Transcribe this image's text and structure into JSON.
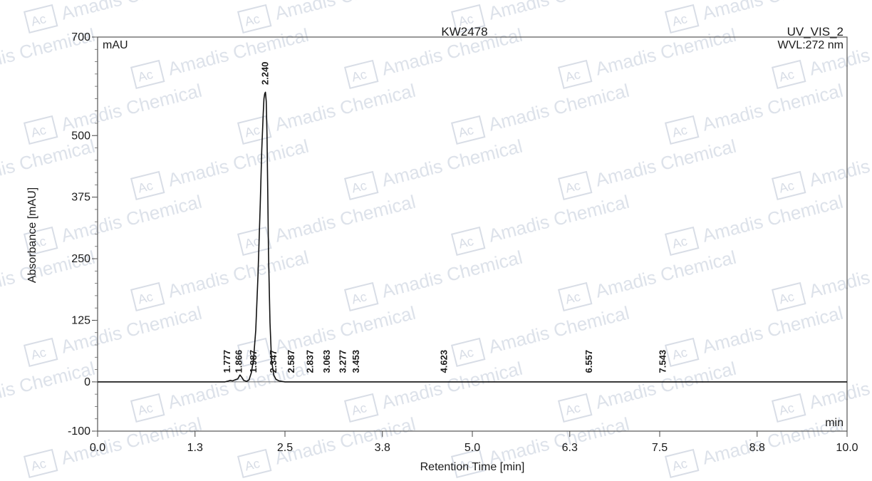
{
  "chart_data": {
    "type": "line",
    "title": "KW2478",
    "channel": "UV_VIS_2",
    "wavelength_label": "WVL:272 nm",
    "xlabel": "Retention Time [min]",
    "ylabel": "Absorbance [mAU]",
    "y_unit_label": "mAU",
    "x_unit_label": "min",
    "xlim": [
      0.0,
      10.0
    ],
    "ylim": [
      -100,
      700
    ],
    "x_ticks": [
      0.0,
      1.3,
      2.5,
      3.8,
      5.0,
      6.3,
      7.5,
      8.8,
      10.0
    ],
    "x_tick_labels": [
      "0.0",
      "1.3",
      "2.5",
      "3.8",
      "5.0",
      "6.3",
      "7.5",
      "8.8",
      "10.0"
    ],
    "y_ticks": [
      -100,
      0,
      125,
      250,
      375,
      500,
      700
    ],
    "y_tick_labels": [
      "-100",
      "0",
      "125",
      "250",
      "375",
      "500",
      "700"
    ],
    "grid": false,
    "series": [
      {
        "x": [
          0.0,
          1.7,
          1.75,
          1.77,
          1.8,
          1.85,
          1.87,
          1.9,
          1.93,
          1.95,
          1.99,
          2.02,
          2.05,
          2.08,
          2.11,
          2.14,
          2.17,
          2.19,
          2.21,
          2.22,
          2.23,
          2.24,
          2.25,
          2.26,
          2.27,
          2.28,
          2.3,
          2.32,
          2.35,
          2.38,
          2.42,
          2.5,
          10.0
        ],
        "y": [
          0,
          0,
          2,
          3,
          2,
          5,
          6,
          14,
          8,
          3,
          1,
          4,
          18,
          45,
          105,
          215,
          360,
          470,
          545,
          575,
          585,
          588,
          570,
          500,
          390,
          260,
          120,
          45,
          14,
          5,
          2,
          0,
          0
        ]
      }
    ],
    "peak_labels": [
      "1.777",
      "1.866",
      "1.987",
      "2.240",
      "2.347",
      "2.587",
      "2.837",
      "3.063",
      "3.277",
      "3.453",
      "4.623",
      "6.557",
      "7.543"
    ],
    "peak_times": [
      1.777,
      1.866,
      1.987,
      2.24,
      2.347,
      2.587,
      2.837,
      3.063,
      3.277,
      3.453,
      4.623,
      6.557,
      7.543
    ],
    "watermark_text": [
      "Amadis Chemical",
      "Ac"
    ]
  }
}
